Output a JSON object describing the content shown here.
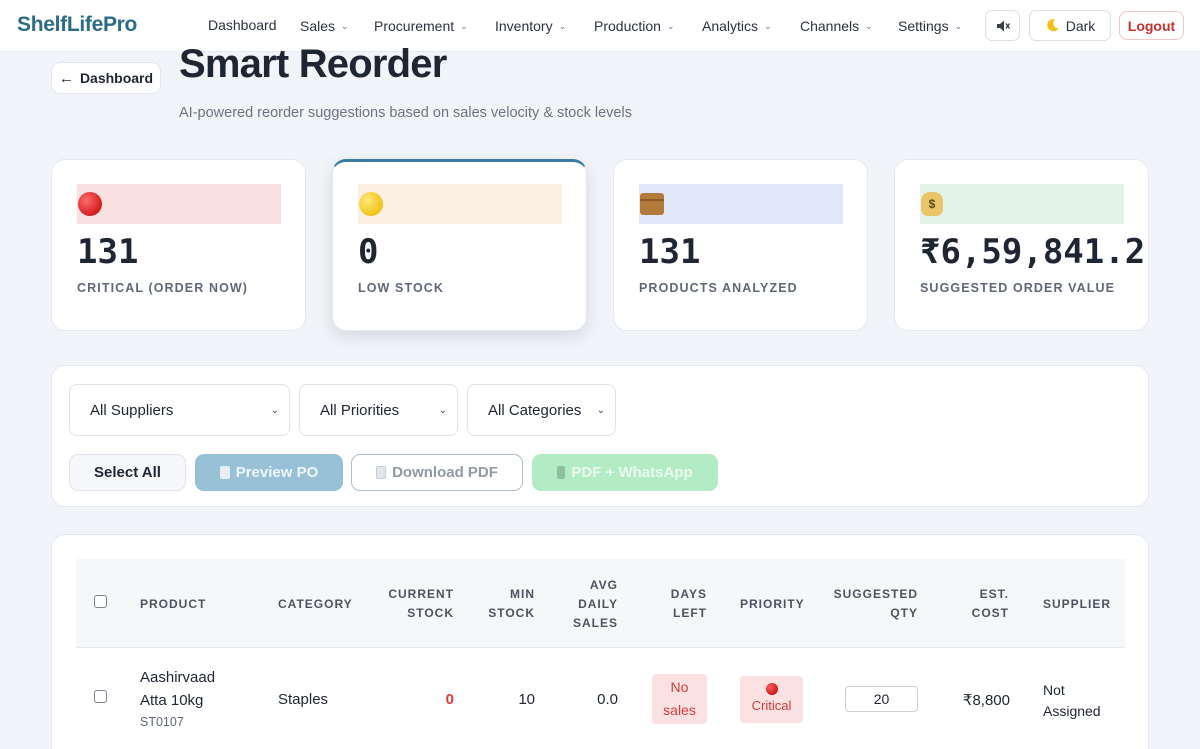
{
  "brand": "ShelfLifePro",
  "nav": {
    "items": [
      "Dashboard",
      "Sales",
      "Procurement",
      "Inventory",
      "Production",
      "Analytics",
      "Channels",
      "Settings"
    ],
    "sound_icon": "speaker-muted-icon",
    "theme_label": "Dark",
    "theme_icon": "moon-icon",
    "logout_label": "Logout"
  },
  "header": {
    "back_label": "Dashboard",
    "title": "Smart Reorder",
    "subtitle": "AI-powered reorder suggestions based on sales velocity & stock levels"
  },
  "stats": [
    {
      "icon": "red-circle-icon",
      "value": "131",
      "label": "CRITICAL (ORDER NOW)",
      "strip_color": "#f9e1e1"
    },
    {
      "icon": "yellow-circle-icon",
      "value": "0",
      "label": "LOW STOCK",
      "strip_color": "#fcefe3"
    },
    {
      "icon": "package-icon",
      "value": "131",
      "label": "PRODUCTS ANALYZED",
      "strip_color": "#e1e8fa"
    },
    {
      "icon": "money-bag-icon",
      "value": "₹6,59,841.2",
      "label": "SUGGESTED ORDER VALUE",
      "strip_color": "#e3f4e6"
    }
  ],
  "filters": {
    "supplier": "All Suppliers",
    "priority": "All Priorities",
    "category": "All Categories"
  },
  "actions": {
    "select_all": "Select All",
    "preview_po": "Preview PO",
    "download_pdf": "Download PDF",
    "pdf_whatsapp": "PDF + WhatsApp"
  },
  "table": {
    "headers": {
      "product": "PRODUCT",
      "category": "CATEGORY",
      "current_stock_1": "CURRENT",
      "current_stock_2": "STOCK",
      "min_stock_1": "MIN",
      "min_stock_2": "STOCK",
      "avg_sales_1": "AVG",
      "avg_sales_2": "DAILY",
      "avg_sales_3": "SALES",
      "days_left_1": "DAYS",
      "days_left_2": "LEFT",
      "priority": "PRIORITY",
      "suggested_qty_1": "SUGGESTED",
      "suggested_qty_2": "QTY",
      "est_cost_1": "EST.",
      "est_cost_2": "COST",
      "supplier": "SUPPLIER"
    },
    "rows": [
      {
        "product_line1": "Aashirvaad",
        "product_line2": "Atta 10kg",
        "sku": "ST0107",
        "category": "Staples",
        "current_stock": "0",
        "min_stock": "10",
        "avg_daily_sales": "0.0",
        "days_left_1": "No",
        "days_left_2": "sales",
        "priority": "Critical",
        "suggested_qty": "20",
        "est_cost": "₹8,800",
        "supplier_1": "Not",
        "supplier_2": "Assigned"
      }
    ]
  }
}
